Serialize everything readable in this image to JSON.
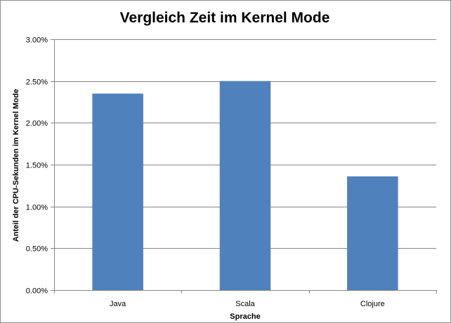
{
  "chart_data": {
    "type": "bar",
    "title": "Vergleich Zeit im Kernel Mode",
    "xlabel": "Sprache",
    "ylabel": "Anteil der CPU-Sekunden im Kernel Mode",
    "categories": [
      "Java",
      "Scala",
      "Clojure"
    ],
    "values": [
      0.0235,
      0.025,
      0.0136
    ],
    "ylim": [
      0,
      0.03
    ],
    "yticks": [
      0,
      0.005,
      0.01,
      0.015,
      0.02,
      0.025,
      0.03
    ],
    "ytick_labels": [
      "0.00%",
      "0.50%",
      "1.00%",
      "1.50%",
      "2.00%",
      "2.50%",
      "3.00%"
    ],
    "grid": true,
    "legend": "none",
    "colors": {
      "bar": "#4F81BD",
      "grid": "#868686",
      "axis": "#868686",
      "border": "#8c8c8c"
    }
  }
}
